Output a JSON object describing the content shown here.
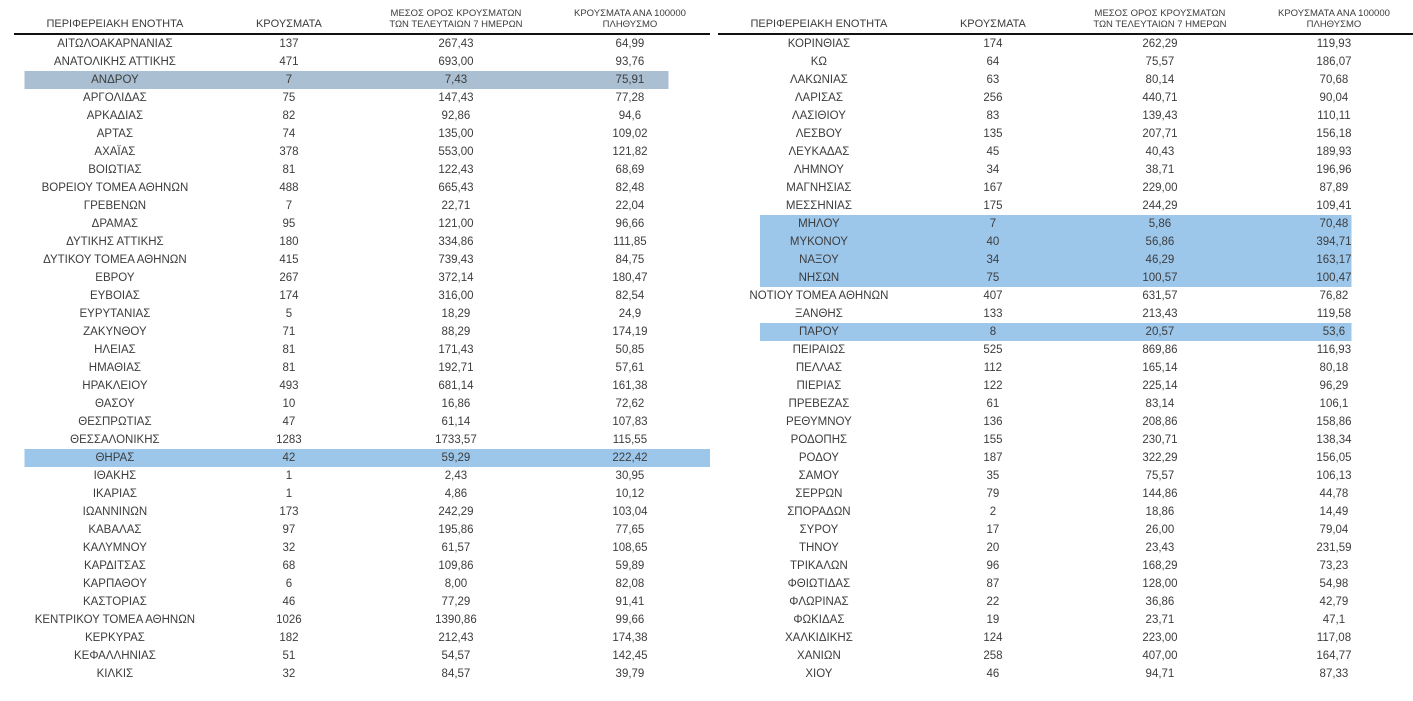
{
  "headers": {
    "region": "ΠΕΡΙΦΕΡΕΙΑΚΗ ΕΝΟΤΗΤΑ",
    "cases": "ΚΡΟΥΣΜΑΤΑ",
    "avg7_line1": "ΜΕΣΟΣ ΟΡΟΣ ΚΡΟΥΣΜΑΤΩΝ",
    "avg7_line2": "ΤΩΝ ΤΕΛΕΥΤΑΙΩΝ 7 ΗΜΕΡΩΝ",
    "per100k_line1": "ΚΡΟΥΣΜΑΤΑ ΑΝΑ 100000",
    "per100k_line2": "ΠΛΗΘΥΣΜΟ"
  },
  "highlight_colors": {
    "muted": "#aabfd2",
    "bright": "#9cc7eb"
  },
  "tables": {
    "left": {
      "rows": [
        {
          "region": "ΑΙΤΩΛΟΑΚΑΡΝΑΝΙΑΣ",
          "cases": "137",
          "avg7": "267,43",
          "per100k": "64,99",
          "hl": null
        },
        {
          "region": "ΑΝΑΤΟΛΙΚΗΣ ΑΤΤΙΚΗΣ",
          "cases": "471",
          "avg7": "693,00",
          "per100k": "93,76",
          "hl": null
        },
        {
          "region": "ΑΝΔΡΟΥ",
          "cases": "7",
          "avg7": "7,43",
          "per100k": "75,91",
          "hl": "muted"
        },
        {
          "region": "ΑΡΓΟΛΙΔΑΣ",
          "cases": "75",
          "avg7": "147,43",
          "per100k": "77,28",
          "hl": null
        },
        {
          "region": "ΑΡΚΑΔΙΑΣ",
          "cases": "82",
          "avg7": "92,86",
          "per100k": "94,6",
          "hl": null
        },
        {
          "region": "ΑΡΤΑΣ",
          "cases": "74",
          "avg7": "135,00",
          "per100k": "109,02",
          "hl": null
        },
        {
          "region": "ΑΧΑΪΑΣ",
          "cases": "378",
          "avg7": "553,00",
          "per100k": "121,82",
          "hl": null
        },
        {
          "region": "ΒΟΙΩΤΙΑΣ",
          "cases": "81",
          "avg7": "122,43",
          "per100k": "68,69",
          "hl": null
        },
        {
          "region": "ΒΟΡΕΙΟΥ ΤΟΜΕΑ ΑΘΗΝΩΝ",
          "cases": "488",
          "avg7": "665,43",
          "per100k": "82,48",
          "hl": null
        },
        {
          "region": "ΓΡΕΒΕΝΩΝ",
          "cases": "7",
          "avg7": "22,71",
          "per100k": "22,04",
          "hl": null
        },
        {
          "region": "ΔΡΑΜΑΣ",
          "cases": "95",
          "avg7": "121,00",
          "per100k": "96,66",
          "hl": null
        },
        {
          "region": "ΔΥΤΙΚΗΣ ΑΤΤΙΚΗΣ",
          "cases": "180",
          "avg7": "334,86",
          "per100k": "111,85",
          "hl": null
        },
        {
          "region": "ΔΥΤΙΚΟΥ ΤΟΜΕΑ ΑΘΗΝΩΝ",
          "cases": "415",
          "avg7": "739,43",
          "per100k": "84,75",
          "hl": null
        },
        {
          "region": "ΕΒΡΟΥ",
          "cases": "267",
          "avg7": "372,14",
          "per100k": "180,47",
          "hl": null
        },
        {
          "region": "ΕΥΒΟΙΑΣ",
          "cases": "174",
          "avg7": "316,00",
          "per100k": "82,54",
          "hl": null
        },
        {
          "region": "ΕΥΡΥΤΑΝΙΑΣ",
          "cases": "5",
          "avg7": "18,29",
          "per100k": "24,9",
          "hl": null
        },
        {
          "region": "ΖΑΚΥΝΘΟΥ",
          "cases": "71",
          "avg7": "88,29",
          "per100k": "174,19",
          "hl": null
        },
        {
          "region": "ΗΛΕΙΑΣ",
          "cases": "81",
          "avg7": "171,43",
          "per100k": "50,85",
          "hl": null
        },
        {
          "region": "ΗΜΑΘΙΑΣ",
          "cases": "81",
          "avg7": "192,71",
          "per100k": "57,61",
          "hl": null
        },
        {
          "region": "ΗΡΑΚΛΕΙΟΥ",
          "cases": "493",
          "avg7": "681,14",
          "per100k": "161,38",
          "hl": null
        },
        {
          "region": "ΘΑΣΟΥ",
          "cases": "10",
          "avg7": "16,86",
          "per100k": "72,62",
          "hl": null
        },
        {
          "region": "ΘΕΣΠΡΩΤΙΑΣ",
          "cases": "47",
          "avg7": "61,14",
          "per100k": "107,83",
          "hl": null
        },
        {
          "region": "ΘΕΣΣΑΛΟΝΙΚΗΣ",
          "cases": "1283",
          "avg7": "1733,57",
          "per100k": "115,55",
          "hl": null
        },
        {
          "region": "ΘΗΡΑΣ",
          "cases": "42",
          "avg7": "59,29",
          "per100k": "222,42",
          "hl": "bright"
        },
        {
          "region": "ΙΘΑΚΗΣ",
          "cases": "1",
          "avg7": "2,43",
          "per100k": "30,95",
          "hl": null
        },
        {
          "region": "ΙΚΑΡΙΑΣ",
          "cases": "1",
          "avg7": "4,86",
          "per100k": "10,12",
          "hl": null
        },
        {
          "region": "ΙΩΑΝΝΙΝΩΝ",
          "cases": "173",
          "avg7": "242,29",
          "per100k": "103,04",
          "hl": null
        },
        {
          "region": "ΚΑΒΑΛΑΣ",
          "cases": "97",
          "avg7": "195,86",
          "per100k": "77,65",
          "hl": null
        },
        {
          "region": "ΚΑΛΥΜΝΟΥ",
          "cases": "32",
          "avg7": "61,57",
          "per100k": "108,65",
          "hl": null
        },
        {
          "region": "ΚΑΡΔΙΤΣΑΣ",
          "cases": "68",
          "avg7": "109,86",
          "per100k": "59,89",
          "hl": null
        },
        {
          "region": "ΚΑΡΠΑΘΟΥ",
          "cases": "6",
          "avg7": "8,00",
          "per100k": "82,08",
          "hl": null
        },
        {
          "region": "ΚΑΣΤΟΡΙΑΣ",
          "cases": "46",
          "avg7": "77,29",
          "per100k": "91,41",
          "hl": null
        },
        {
          "region": "ΚΕΝΤΡΙΚΟΥ ΤΟΜΕΑ ΑΘΗΝΩΝ",
          "cases": "1026",
          "avg7": "1390,86",
          "per100k": "99,66",
          "hl": null
        },
        {
          "region": "ΚΕΡΚΥΡΑΣ",
          "cases": "182",
          "avg7": "212,43",
          "per100k": "174,38",
          "hl": null
        },
        {
          "region": "ΚΕΦΑΛΛΗΝΙΑΣ",
          "cases": "51",
          "avg7": "54,57",
          "per100k": "142,45",
          "hl": null
        },
        {
          "region": "ΚΙΛΚΙΣ",
          "cases": "32",
          "avg7": "84,57",
          "per100k": "39,79",
          "hl": null
        }
      ]
    },
    "right": {
      "rows": [
        {
          "region": "ΚΟΡΙΝΘΙΑΣ",
          "cases": "174",
          "avg7": "262,29",
          "per100k": "119,93",
          "hl": null
        },
        {
          "region": "ΚΩ",
          "cases": "64",
          "avg7": "75,57",
          "per100k": "186,07",
          "hl": null
        },
        {
          "region": "ΛΑΚΩΝΙΑΣ",
          "cases": "63",
          "avg7": "80,14",
          "per100k": "70,68",
          "hl": null
        },
        {
          "region": "ΛΑΡΙΣΑΣ",
          "cases": "256",
          "avg7": "440,71",
          "per100k": "90,04",
          "hl": null
        },
        {
          "region": "ΛΑΣΙΘΙΟΥ",
          "cases": "83",
          "avg7": "139,43",
          "per100k": "110,11",
          "hl": null
        },
        {
          "region": "ΛΕΣΒΟΥ",
          "cases": "135",
          "avg7": "207,71",
          "per100k": "156,18",
          "hl": null
        },
        {
          "region": "ΛΕΥΚΑΔΑΣ",
          "cases": "45",
          "avg7": "40,43",
          "per100k": "189,93",
          "hl": null
        },
        {
          "region": "ΛΗΜΝΟΥ",
          "cases": "34",
          "avg7": "38,71",
          "per100k": "196,96",
          "hl": null
        },
        {
          "region": "ΜΑΓΝΗΣΙΑΣ",
          "cases": "167",
          "avg7": "229,00",
          "per100k": "87,89",
          "hl": null
        },
        {
          "region": "ΜΕΣΣΗΝΙΑΣ",
          "cases": "175",
          "avg7": "244,29",
          "per100k": "109,41",
          "hl": null
        },
        {
          "region": "ΜΗΛΟΥ",
          "cases": "7",
          "avg7": "5,86",
          "per100k": "70,48",
          "hl": "bright"
        },
        {
          "region": "ΜΥΚΟΝΟΥ",
          "cases": "40",
          "avg7": "56,86",
          "per100k": "394,71",
          "hl": "bright"
        },
        {
          "region": "ΝΑΞΟΥ",
          "cases": "34",
          "avg7": "46,29",
          "per100k": "163,17",
          "hl": "bright"
        },
        {
          "region": "ΝΗΣΩΝ",
          "cases": "75",
          "avg7": "100,57",
          "per100k": "100,47",
          "hl": "bright"
        },
        {
          "region": "ΝΟΤΙΟΥ ΤΟΜΕΑ ΑΘΗΝΩΝ",
          "cases": "407",
          "avg7": "631,57",
          "per100k": "76,82",
          "hl": null
        },
        {
          "region": "ΞΑΝΘΗΣ",
          "cases": "133",
          "avg7": "213,43",
          "per100k": "119,58",
          "hl": null
        },
        {
          "region": "ΠΑΡΟΥ",
          "cases": "8",
          "avg7": "20,57",
          "per100k": "53,6",
          "hl": "bright"
        },
        {
          "region": "ΠΕΙΡΑΙΩΣ",
          "cases": "525",
          "avg7": "869,86",
          "per100k": "116,93",
          "hl": null
        },
        {
          "region": "ΠΕΛΛΑΣ",
          "cases": "112",
          "avg7": "165,14",
          "per100k": "80,18",
          "hl": null
        },
        {
          "region": "ΠΙΕΡΙΑΣ",
          "cases": "122",
          "avg7": "225,14",
          "per100k": "96,29",
          "hl": null
        },
        {
          "region": "ΠΡΕΒΕΖΑΣ",
          "cases": "61",
          "avg7": "83,14",
          "per100k": "106,1",
          "hl": null
        },
        {
          "region": "ΡΕΘΥΜΝΟΥ",
          "cases": "136",
          "avg7": "208,86",
          "per100k": "158,86",
          "hl": null
        },
        {
          "region": "ΡΟΔΟΠΗΣ",
          "cases": "155",
          "avg7": "230,71",
          "per100k": "138,34",
          "hl": null
        },
        {
          "region": "ΡΟΔΟΥ",
          "cases": "187",
          "avg7": "322,29",
          "per100k": "156,05",
          "hl": null
        },
        {
          "region": "ΣΑΜΟΥ",
          "cases": "35",
          "avg7": "75,57",
          "per100k": "106,13",
          "hl": null
        },
        {
          "region": "ΣΕΡΡΩΝ",
          "cases": "79",
          "avg7": "144,86",
          "per100k": "44,78",
          "hl": null
        },
        {
          "region": "ΣΠΟΡΑΔΩΝ",
          "cases": "2",
          "avg7": "18,86",
          "per100k": "14,49",
          "hl": null
        },
        {
          "region": "ΣΥΡΟΥ",
          "cases": "17",
          "avg7": "26,00",
          "per100k": "79,04",
          "hl": null
        },
        {
          "region": "ΤΗΝΟΥ",
          "cases": "20",
          "avg7": "23,43",
          "per100k": "231,59",
          "hl": null
        },
        {
          "region": "ΤΡΙΚΑΛΩΝ",
          "cases": "96",
          "avg7": "168,29",
          "per100k": "73,23",
          "hl": null
        },
        {
          "region": "ΦΘΙΩΤΙΔΑΣ",
          "cases": "87",
          "avg7": "128,00",
          "per100k": "54,98",
          "hl": null
        },
        {
          "region": "ΦΛΩΡΙΝΑΣ",
          "cases": "22",
          "avg7": "36,86",
          "per100k": "42,79",
          "hl": null
        },
        {
          "region": "ΦΩΚΙΔΑΣ",
          "cases": "19",
          "avg7": "23,71",
          "per100k": "47,1",
          "hl": null
        },
        {
          "region": "ΧΑΛΚΙΔΙΚΗΣ",
          "cases": "124",
          "avg7": "223,00",
          "per100k": "117,08",
          "hl": null
        },
        {
          "region": "ΧΑΝΙΩΝ",
          "cases": "258",
          "avg7": "407,00",
          "per100k": "164,77",
          "hl": null
        },
        {
          "region": "ΧΙΟΥ",
          "cases": "46",
          "avg7": "94,71",
          "per100k": "87,33",
          "hl": null
        }
      ]
    }
  }
}
